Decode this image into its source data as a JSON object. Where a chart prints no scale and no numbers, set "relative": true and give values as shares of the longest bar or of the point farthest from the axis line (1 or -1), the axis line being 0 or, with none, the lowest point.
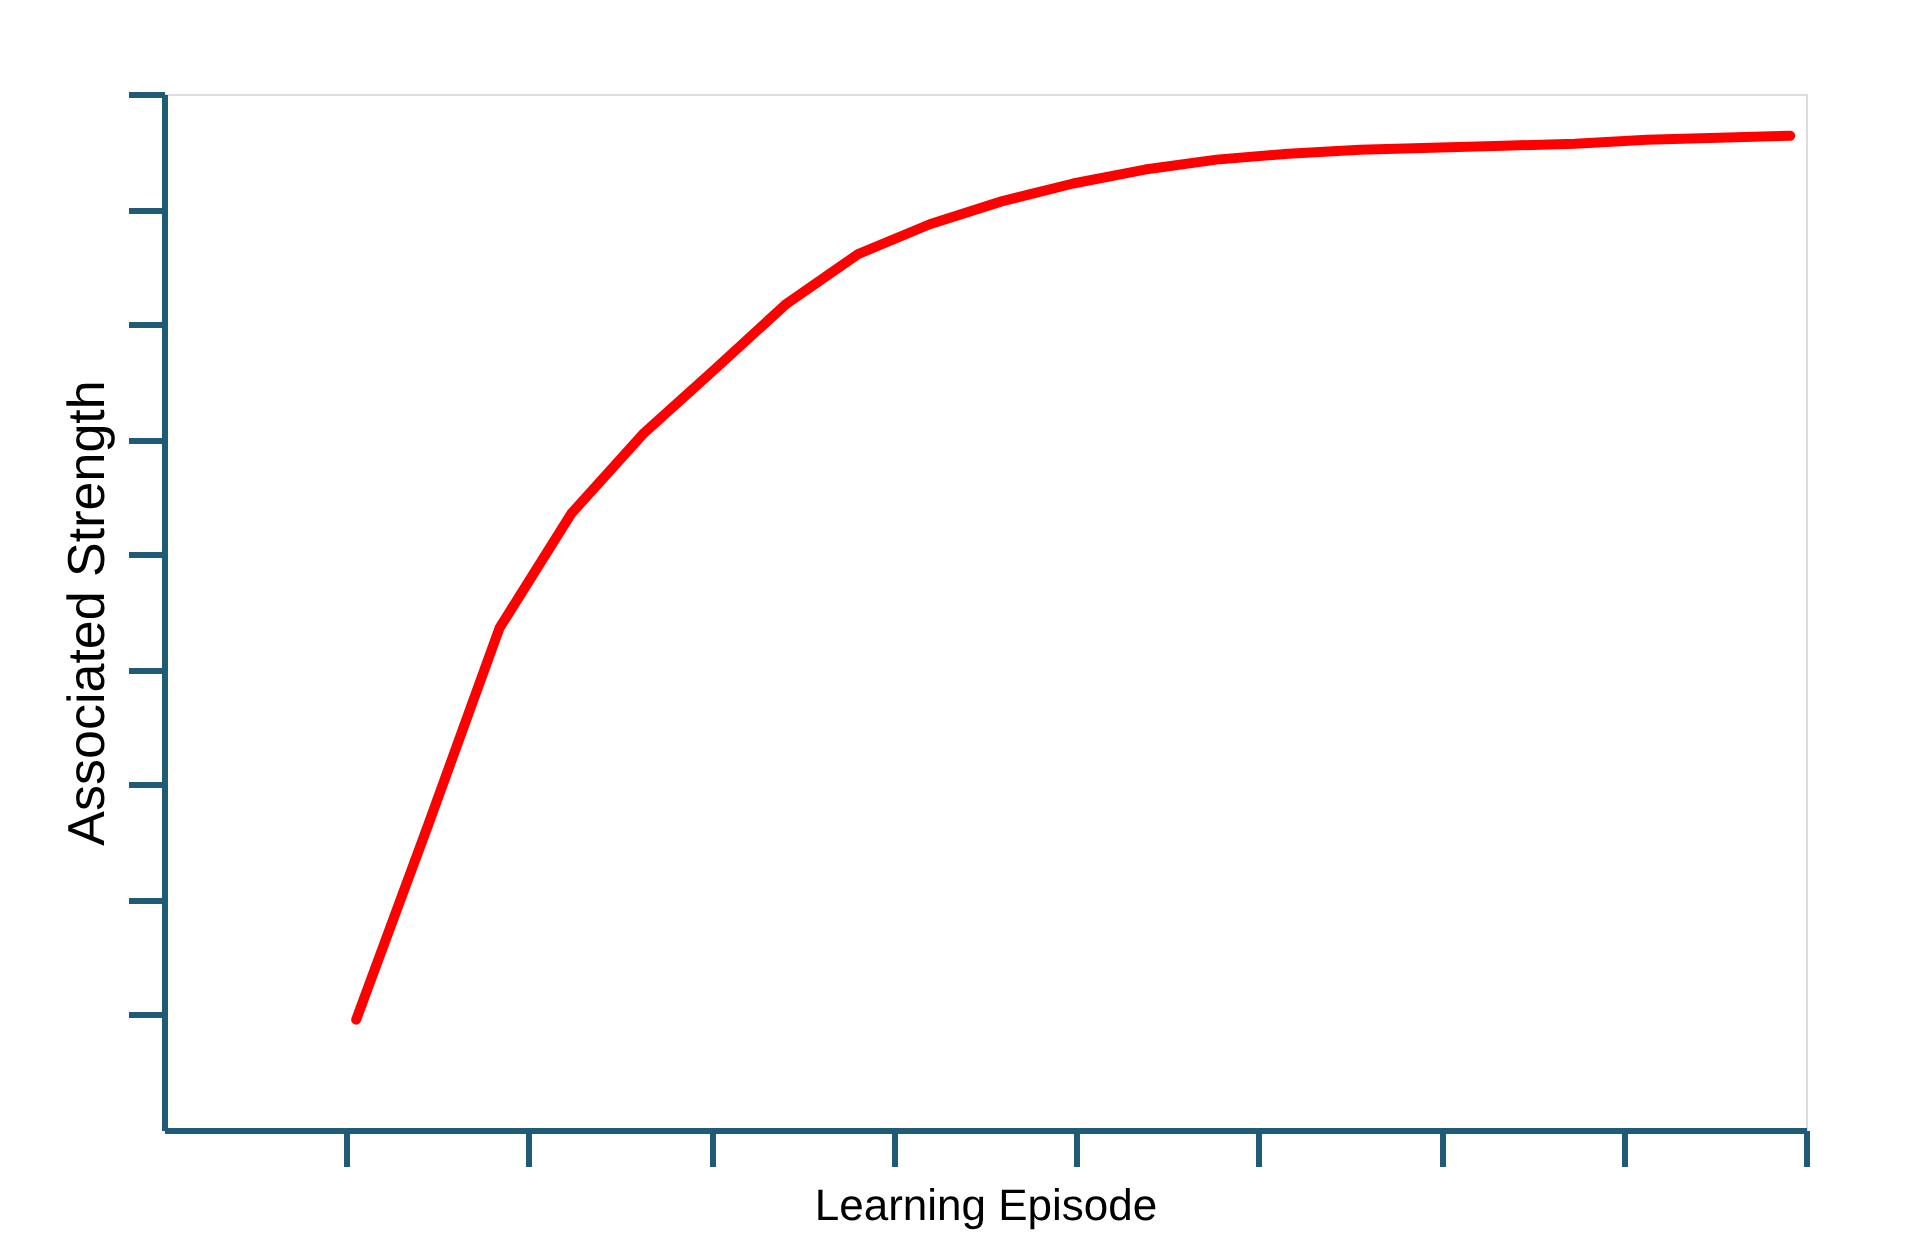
{
  "chart_data": {
    "type": "line",
    "relative": true,
    "xlabel": "Learning Episode",
    "ylabel": "Associated Strength",
    "categories": [
      null,
      null,
      null,
      null,
      null,
      null,
      null,
      null,
      null,
      null,
      null,
      null,
      null,
      null,
      null,
      null,
      null,
      null,
      null,
      null,
      null
    ],
    "series": [
      {
        "color": "#ff0000",
        "values": [
          0.111,
          0.306,
          0.505,
          0.62,
          0.7,
          0.765,
          0.831,
          0.881,
          0.911,
          0.934,
          0.952,
          0.966,
          0.976,
          0.982,
          0.986,
          0.988,
          0.99,
          0.992,
          0.996,
          0.998,
          1.0
        ]
      }
    ],
    "grid": false,
    "legend": false,
    "marker": "none",
    "line_style": "solid",
    "tick_labels": false
  }
}
